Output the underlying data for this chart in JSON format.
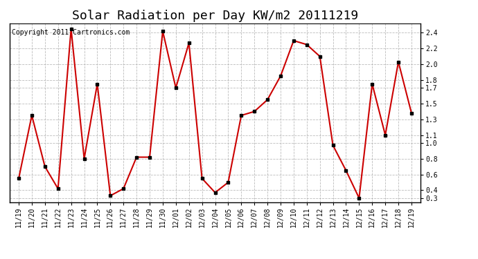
{
  "title": "Solar Radiation per Day KW/m2 20111219",
  "copyright_text": "Copyright 2011 Cartronics.com",
  "labels": [
    "11/19",
    "11/20",
    "11/21",
    "11/22",
    "11/23",
    "11/24",
    "11/25",
    "11/26",
    "11/27",
    "11/28",
    "11/29",
    "11/30",
    "12/01",
    "12/02",
    "12/03",
    "12/04",
    "12/05",
    "12/06",
    "12/07",
    "12/08",
    "12/09",
    "12/10",
    "12/11",
    "12/12",
    "12/13",
    "12/14",
    "12/15",
    "12/16",
    "12/17",
    "12/18",
    "12/19"
  ],
  "values": [
    0.55,
    1.35,
    0.7,
    0.42,
    2.45,
    0.8,
    1.75,
    0.33,
    0.42,
    0.82,
    0.82,
    2.42,
    1.7,
    2.27,
    0.55,
    0.37,
    0.5,
    1.35,
    1.4,
    1.55,
    1.85,
    2.3,
    2.25,
    2.1,
    0.97,
    0.65,
    0.3,
    1.75,
    1.1,
    2.03,
    1.38
  ],
  "line_color": "#cc0000",
  "marker_color": "#000000",
  "bg_color": "#ffffff",
  "plot_bg_color": "#ffffff",
  "grid_color": "#aaaaaa",
  "yticks": [
    0.3,
    0.4,
    0.6,
    0.8,
    1.0,
    1.1,
    1.3,
    1.5,
    1.7,
    1.8,
    2.0,
    2.2,
    2.4
  ],
  "ylim_min": 0.25,
  "ylim_max": 2.52,
  "title_fontsize": 13,
  "tick_fontsize": 7,
  "copyright_fontsize": 7
}
